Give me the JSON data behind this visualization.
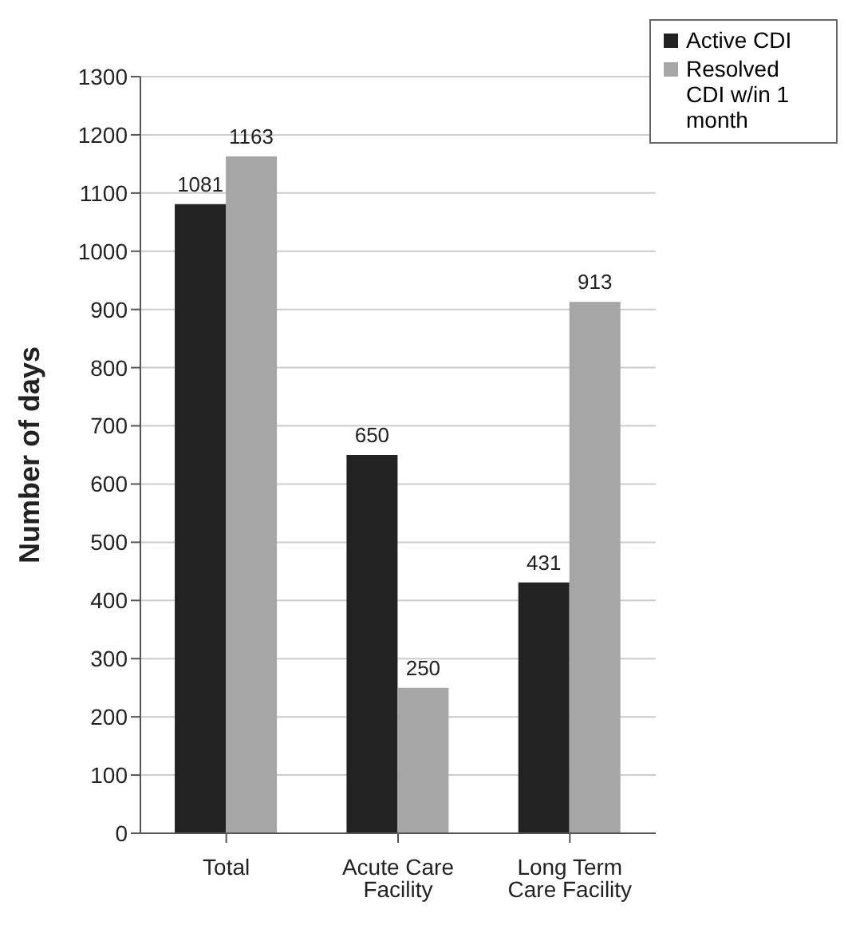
{
  "chart_data": {
    "type": "bar",
    "ylabel": "Number of days",
    "categories": [
      "Total",
      "Acute Care Facility",
      "Long Term Care Facility"
    ],
    "series": [
      {
        "name": "Active CDI",
        "color": "#222222",
        "values": [
          1081,
          650,
          431
        ]
      },
      {
        "name": "Resolved CDI w/in 1 month",
        "color": "#a6a6a6",
        "values": [
          1163,
          250,
          913
        ]
      }
    ],
    "ylim": [
      0,
      1300
    ],
    "yticks": [
      0,
      100,
      200,
      300,
      400,
      500,
      600,
      700,
      800,
      900,
      1000,
      1100,
      1200,
      1300
    ],
    "grid": "y",
    "legend": "top right",
    "data_labels": true
  }
}
